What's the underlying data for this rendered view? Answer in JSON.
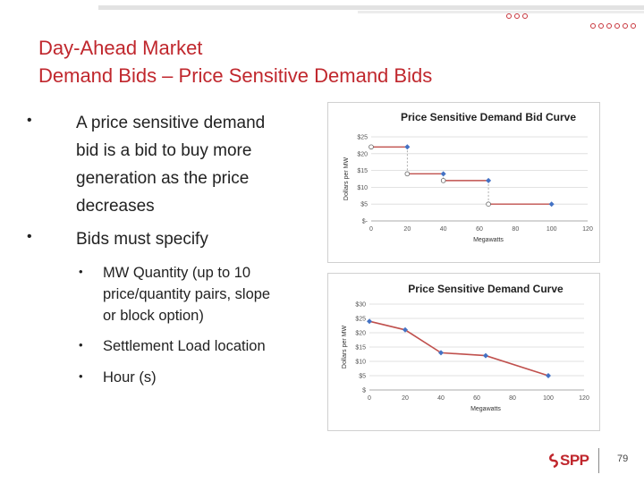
{
  "title": {
    "line1": "Day-Ahead Market",
    "line2": "Demand Bids – Price Sensitive Demand Bids"
  },
  "bullets": [
    {
      "lines": [
        "A price sensitive demand",
        "bid is a bid to buy more",
        "generation as the price",
        "decreases"
      ]
    },
    {
      "lines": [
        "Bids must specify"
      ]
    }
  ],
  "sub_bullets": [
    {
      "lines": [
        "MW Quantity (up to 10",
        "price/quantity pairs, slope",
        "or block option)"
      ]
    },
    {
      "lines": [
        "Settlement Load location"
      ]
    },
    {
      "lines": [
        "Hour (s)"
      ]
    }
  ],
  "bullet_symbol": "•",
  "accent_color": "#c0272d",
  "logo": {
    "text": "SPP"
  },
  "page_number": "79",
  "chart_data": [
    {
      "type": "line",
      "title": "Price Sensitive Demand Bid Curve",
      "xlabel": "Megawatts",
      "ylabel": "Dollars per MW",
      "xlim": [
        0,
        120
      ],
      "ylim": [
        0,
        25
      ],
      "x_ticks": [
        "0",
        "20",
        "40",
        "60",
        "80",
        "100",
        "120"
      ],
      "y_ticks": [
        "$-",
        "$5",
        "$10",
        "$15",
        "$20",
        "$25"
      ],
      "step_segments": [
        {
          "x": [
            0,
            20
          ],
          "y": [
            22,
            22
          ]
        },
        {
          "x": [
            20,
            40
          ],
          "y": [
            14,
            14
          ]
        },
        {
          "x": [
            40,
            65
          ],
          "y": [
            12,
            12
          ]
        },
        {
          "x": [
            65,
            100
          ],
          "y": [
            5,
            5
          ]
        }
      ],
      "open_points": [
        {
          "x": 0,
          "y": 22
        },
        {
          "x": 20,
          "y": 14
        },
        {
          "x": 40,
          "y": 12
        },
        {
          "x": 65,
          "y": 5
        }
      ],
      "filled_points": [
        {
          "x": 20,
          "y": 22
        },
        {
          "x": 40,
          "y": 14
        },
        {
          "x": 65,
          "y": 12
        },
        {
          "x": 100,
          "y": 5
        }
      ],
      "line_color": "#c0504d",
      "marker_color": "#4472c4",
      "grid": true
    },
    {
      "type": "line",
      "title": "Price Sensitive Demand Curve",
      "xlabel": "Megawatts",
      "ylabel": "Dollars per MW",
      "xlim": [
        0,
        120
      ],
      "ylim": [
        0,
        30
      ],
      "x_ticks": [
        "0",
        "20",
        "40",
        "60",
        "80",
        "100",
        "120"
      ],
      "y_ticks": [
        "$",
        "$5",
        "$10",
        "$15",
        "$20",
        "$25",
        "$30"
      ],
      "series": [
        {
          "x": [
            0,
            20,
            40,
            65,
            100
          ],
          "y": [
            24,
            21,
            13,
            12,
            5
          ]
        }
      ],
      "line_color": "#c0504d",
      "marker_color": "#4472c4",
      "grid": true
    }
  ]
}
